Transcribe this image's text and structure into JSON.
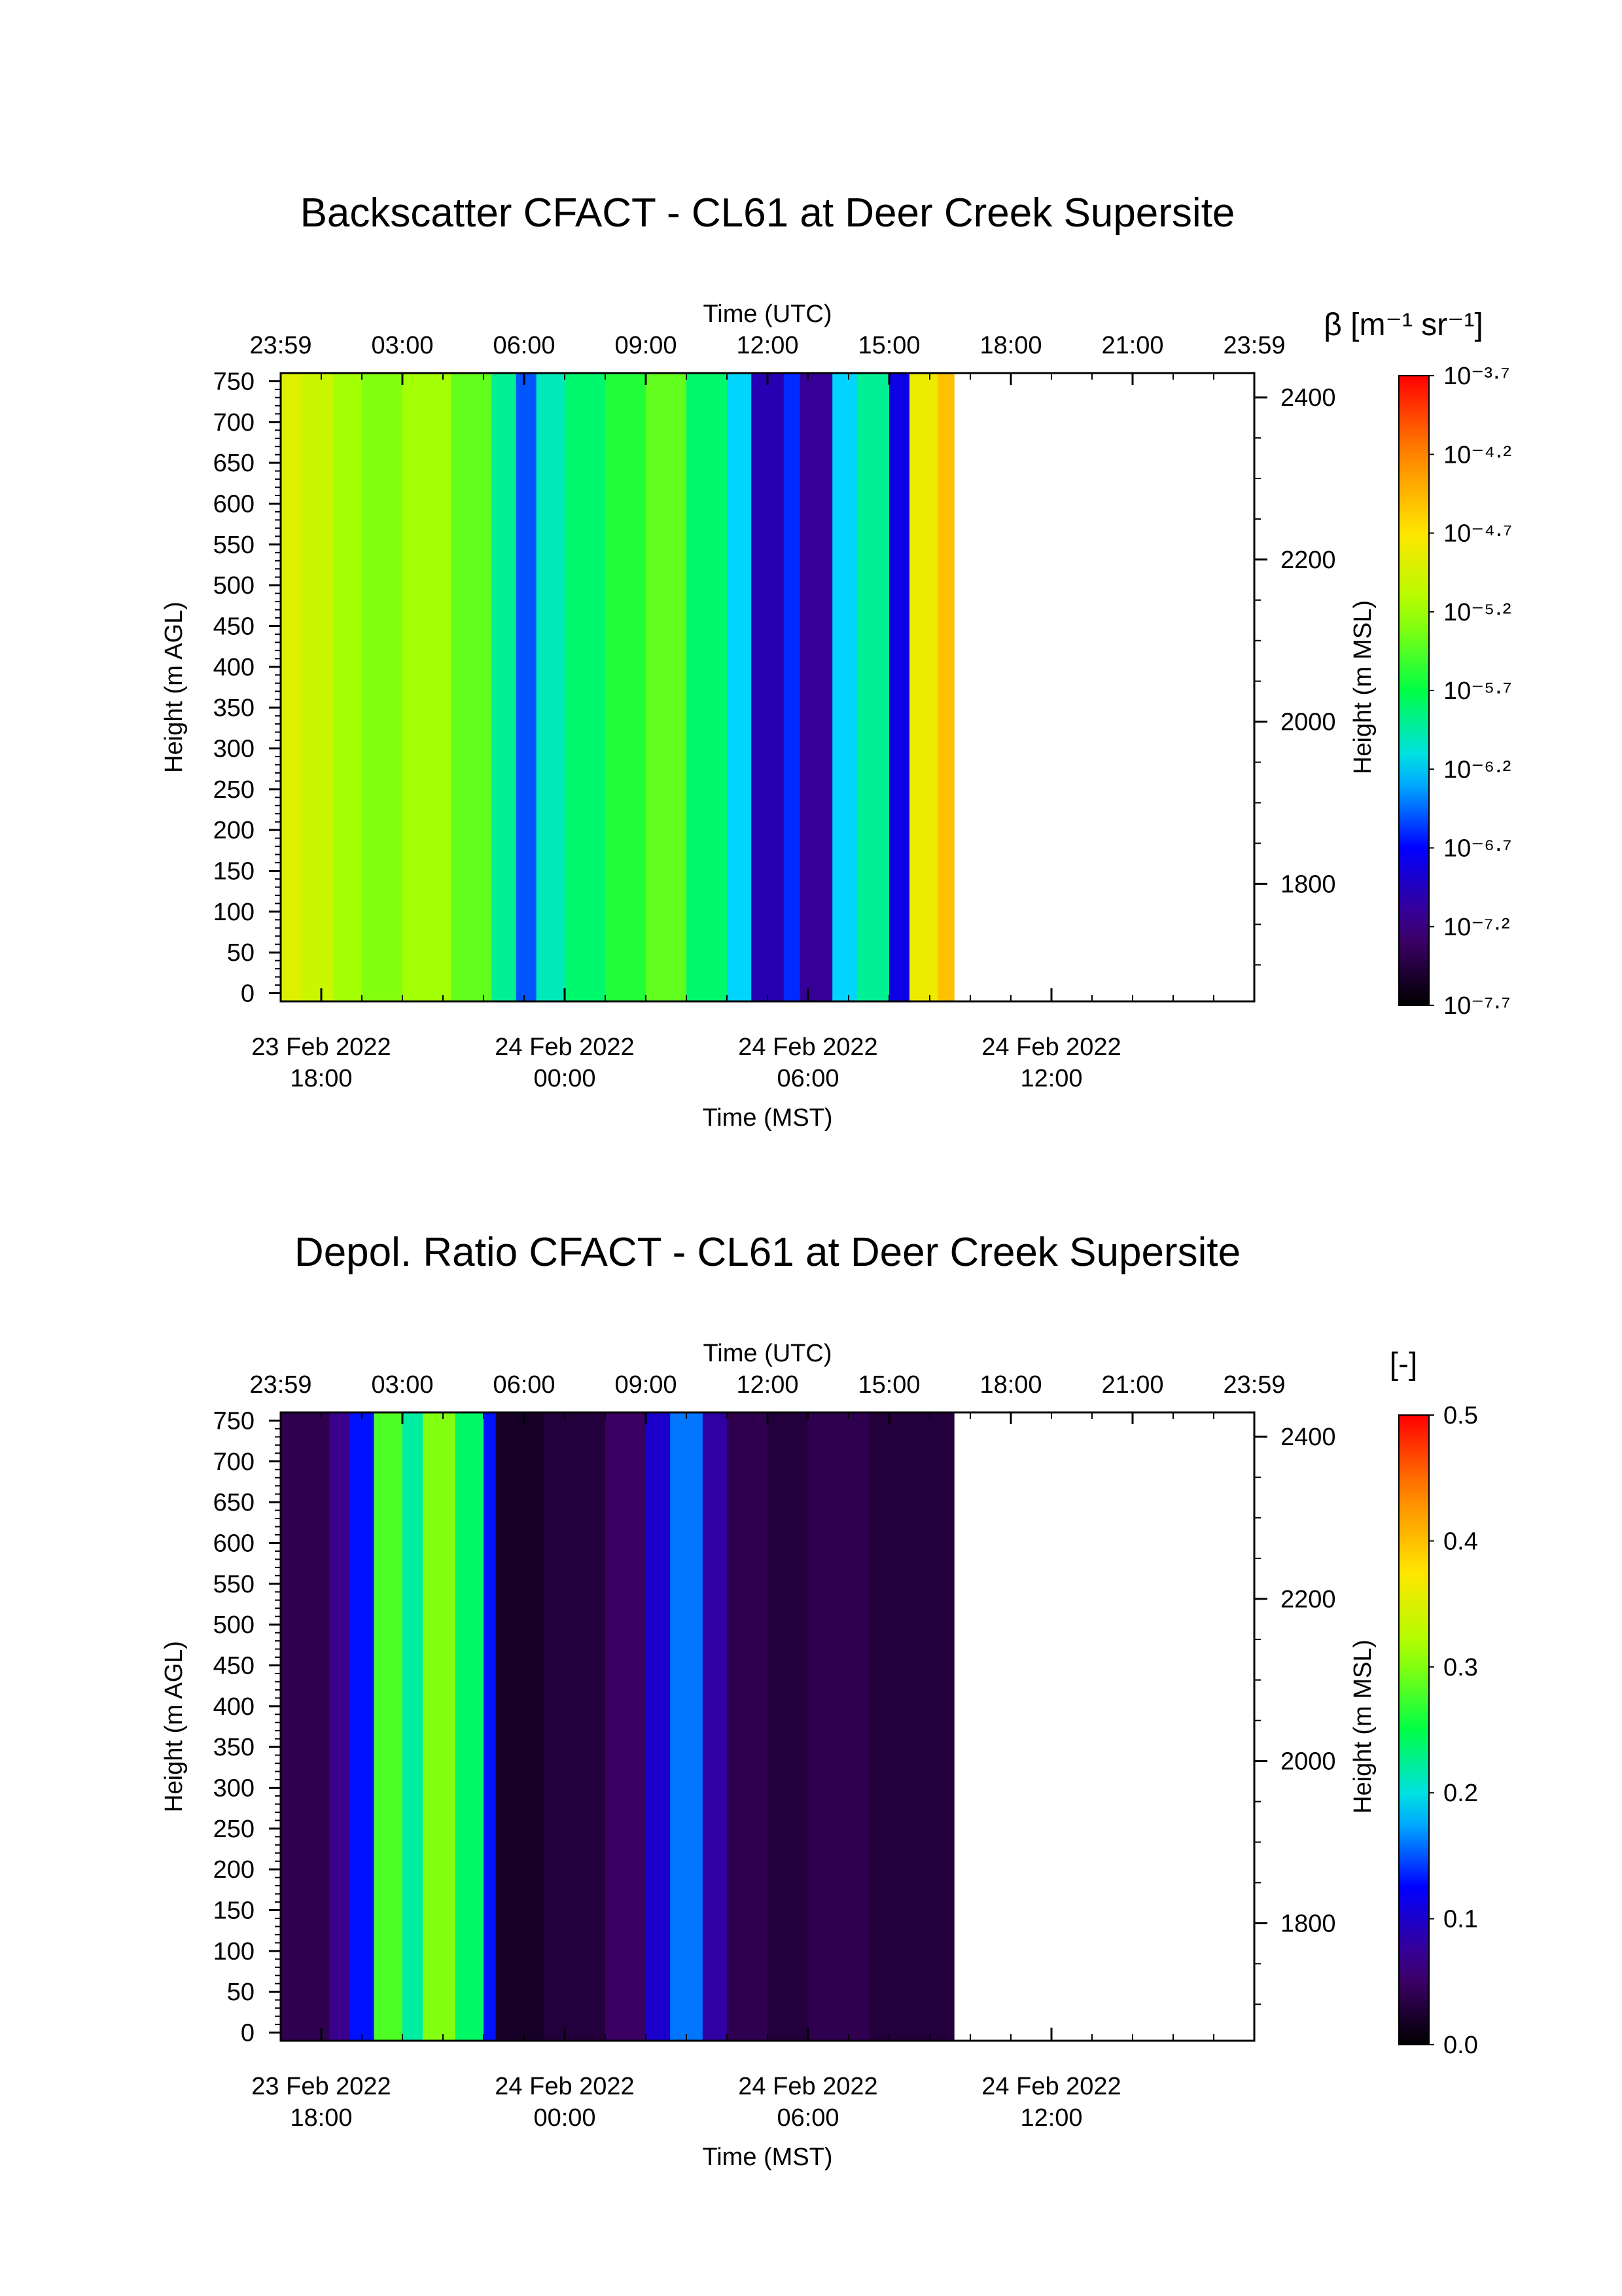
{
  "chart_data": [
    {
      "type": "heatmap",
      "title": "Backscatter CFACT - CL61 at Deer Creek Supersite",
      "top_axis": {
        "label": "Time (UTC)",
        "ticks": [
          "23:59",
          "03:00",
          "06:00",
          "09:00",
          "12:00",
          "15:00",
          "18:00",
          "21:00",
          "23:59"
        ]
      },
      "bottom_axis": {
        "label": "Time (MST)",
        "ticks": [
          {
            "date": "23 Feb 2022",
            "time": "18:00"
          },
          {
            "date": "24 Feb 2022",
            "time": "00:00"
          },
          {
            "date": "24 Feb 2022",
            "time": "06:00"
          },
          {
            "date": "24 Feb 2022",
            "time": "12:00"
          }
        ]
      },
      "left_axis": {
        "label": "Height (m AGL)",
        "ticks": [
          0,
          50,
          100,
          150,
          200,
          250,
          300,
          350,
          400,
          450,
          500,
          550,
          600,
          650,
          700,
          750
        ],
        "range": [
          -10,
          760
        ]
      },
      "right_axis": {
        "label": "Height (m MSL)",
        "ticks": [
          1800,
          2000,
          2200,
          2400
        ],
        "range": [
          1655,
          2430
        ]
      },
      "data_extent_utc_hours": [
        0,
        16.6
      ],
      "colorbar": {
        "label": "β [m⁻¹ sr⁻¹]",
        "scale": "log",
        "ticks": [
          "10⁻⁷·⁷",
          "10⁻⁷·²",
          "10⁻⁶·⁷",
          "10⁻⁶·²",
          "10⁻⁵·⁷",
          "10⁻⁵·²",
          "10⁻⁴·⁷",
          "10⁻⁴·²",
          "10⁻³·⁷"
        ],
        "range_log10": [
          -7.7,
          -3.7
        ]
      },
      "columns_log10_beta": [
        {
          "x": [
            0.0,
            0.5
          ],
          "v": -4.9
        },
        {
          "x": [
            0.5,
            1.3
          ],
          "v": -5.0
        },
        {
          "x": [
            1.3,
            2.0
          ],
          "v": -5.2
        },
        {
          "x": [
            2.0,
            3.0
          ],
          "v": -5.3
        },
        {
          "x": [
            3.0,
            4.2
          ],
          "v": -5.2
        },
        {
          "x": [
            4.2,
            5.2
          ],
          "v": -5.4
        },
        {
          "x": [
            5.2,
            5.8
          ],
          "v": -5.9
        },
        {
          "x": [
            5.8,
            6.3
          ],
          "v": -6.5
        },
        {
          "x": [
            6.3,
            7.0
          ],
          "v": -6.0
        },
        {
          "x": [
            7.0,
            8.0
          ],
          "v": -5.8
        },
        {
          "x": [
            8.0,
            9.0
          ],
          "v": -5.6
        },
        {
          "x": [
            9.0,
            10.0
          ],
          "v": -5.4
        },
        {
          "x": [
            10.0,
            11.0
          ],
          "v": -5.8
        },
        {
          "x": [
            11.0,
            11.6
          ],
          "v": -6.2
        },
        {
          "x": [
            11.6,
            12.4
          ],
          "v": -7.0
        },
        {
          "x": [
            12.4,
            12.8
          ],
          "v": -6.6
        },
        {
          "x": [
            12.8,
            13.6
          ],
          "v": -7.1
        },
        {
          "x": [
            13.6,
            14.2
          ],
          "v": -6.2
        },
        {
          "x": [
            14.2,
            15.0
          ],
          "v": -5.9
        },
        {
          "x": [
            15.0,
            15.5
          ],
          "v": -6.8
        },
        {
          "x": [
            15.5,
            16.2
          ],
          "v": -4.8
        },
        {
          "x": [
            16.2,
            16.6
          ],
          "v": -4.5
        }
      ]
    },
    {
      "type": "heatmap",
      "title": "Depol. Ratio CFACT - CL61 at Deer Creek Supersite",
      "top_axis": {
        "label": "Time (UTC)",
        "ticks": [
          "23:59",
          "03:00",
          "06:00",
          "09:00",
          "12:00",
          "15:00",
          "18:00",
          "21:00",
          "23:59"
        ]
      },
      "bottom_axis": {
        "label": "Time (MST)",
        "ticks": [
          {
            "date": "23 Feb 2022",
            "time": "18:00"
          },
          {
            "date": "24 Feb 2022",
            "time": "00:00"
          },
          {
            "date": "24 Feb 2022",
            "time": "06:00"
          },
          {
            "date": "24 Feb 2022",
            "time": "12:00"
          }
        ]
      },
      "left_axis": {
        "label": "Height (m AGL)",
        "ticks": [
          0,
          50,
          100,
          150,
          200,
          250,
          300,
          350,
          400,
          450,
          500,
          550,
          600,
          650,
          700,
          750
        ],
        "range": [
          -10,
          760
        ]
      },
      "right_axis": {
        "label": "Height (m MSL)",
        "ticks": [
          1800,
          2000,
          2200,
          2400
        ],
        "range": [
          1655,
          2430
        ]
      },
      "data_extent_utc_hours": [
        0,
        16.6
      ],
      "colorbar": {
        "label": "[-]",
        "scale": "linear",
        "ticks": [
          "0.0",
          "0.1",
          "0.2",
          "0.3",
          "0.4",
          "0.5"
        ],
        "range": [
          0,
          0.5
        ]
      },
      "columns_depol": [
        {
          "x": [
            0.0,
            1.2
          ],
          "v": 0.04
        },
        {
          "x": [
            1.2,
            1.7
          ],
          "v": 0.07
        },
        {
          "x": [
            1.7,
            2.3
          ],
          "v": 0.13
        },
        {
          "x": [
            2.3,
            3.0
          ],
          "v": 0.28
        },
        {
          "x": [
            3.0,
            3.5
          ],
          "v": 0.22
        },
        {
          "x": [
            3.5,
            4.3
          ],
          "v": 0.3
        },
        {
          "x": [
            4.3,
            5.0
          ],
          "v": 0.24
        },
        {
          "x": [
            5.0,
            5.3
          ],
          "v": 0.13
        },
        {
          "x": [
            5.3,
            6.5
          ],
          "v": 0.02
        },
        {
          "x": [
            6.5,
            8.0
          ],
          "v": 0.03
        },
        {
          "x": [
            8.0,
            9.0
          ],
          "v": 0.05
        },
        {
          "x": [
            9.0,
            9.6
          ],
          "v": 0.1
        },
        {
          "x": [
            9.6,
            10.4
          ],
          "v": 0.16
        },
        {
          "x": [
            10.4,
            11.0
          ],
          "v": 0.08
        },
        {
          "x": [
            11.0,
            12.0
          ],
          "v": 0.04
        },
        {
          "x": [
            12.0,
            13.0
          ],
          "v": 0.03
        },
        {
          "x": [
            13.0,
            14.5
          ],
          "v": 0.04
        },
        {
          "x": [
            14.5,
            16.6
          ],
          "v": 0.03
        }
      ]
    }
  ]
}
